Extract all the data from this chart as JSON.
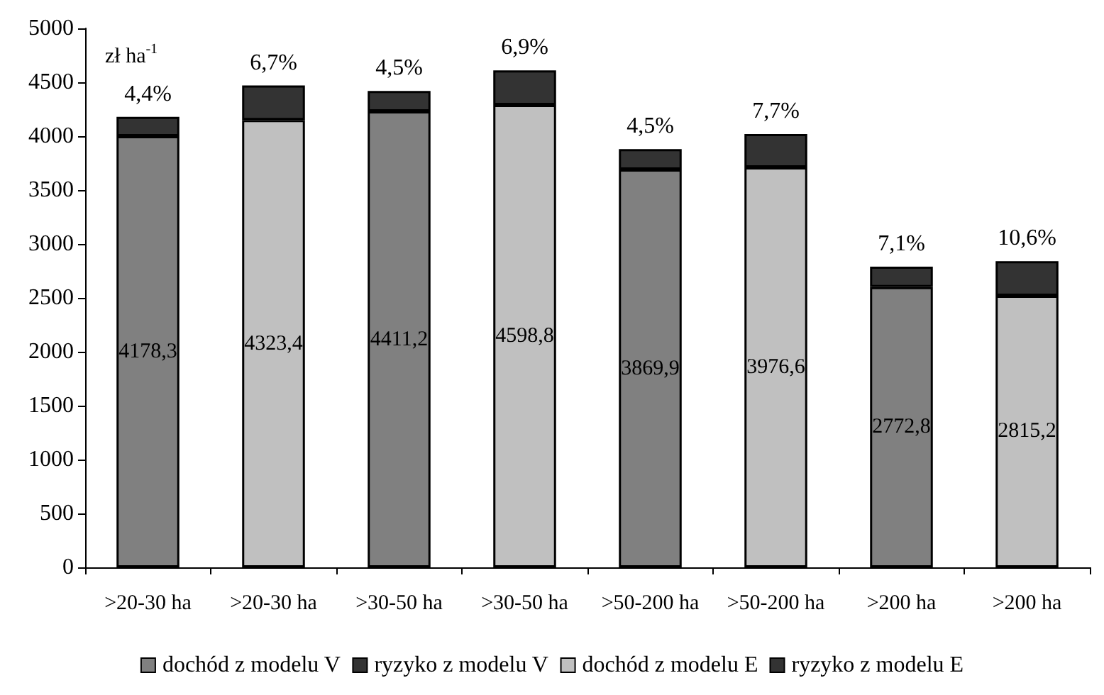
{
  "chart_data": {
    "type": "bar",
    "stacked": true,
    "ylabel": "zł ha$^{-1}$",
    "categories": [
      ">20-30 ha",
      ">20-30 ha",
      ">30-50 ha",
      ">30-50 ha",
      ">50-200 ha",
      ">50-200 ha",
      ">200 ha",
      ">200 ha"
    ],
    "series": [
      {
        "name": "dochód z modelu V",
        "color": "#808080",
        "values": [
          4000,
          null,
          4230,
          null,
          3690,
          null,
          2600,
          null
        ]
      },
      {
        "name": "ryzyko z modelu V",
        "color": "#333333",
        "values": [
          180,
          null,
          190,
          null,
          190,
          null,
          190,
          null
        ]
      },
      {
        "name": "dochód z modelu E",
        "color": "#c0c0c0",
        "values": [
          null,
          4150,
          null,
          4290,
          null,
          3710,
          null,
          2520
        ]
      },
      {
        "name": "ryzyko z modelu E",
        "color": "#333333",
        "values": [
          null,
          320,
          null,
          320,
          null,
          310,
          null,
          320
        ]
      }
    ],
    "annotations": [
      "4178,3",
      "4323,4",
      "4411,2",
      "4598,8",
      "3869,9",
      "3976,6",
      "2772,8",
      "2815,2",
      "4,4%",
      "6,7%",
      "4,5%",
      "6,9%",
      "4,5%",
      "7,7%",
      "7,1%",
      "10,6%"
    ],
    "ylim": [
      0,
      5000
    ],
    "yticks": [
      0,
      500,
      1000,
      1500,
      2000,
      2500,
      3000,
      3500,
      4000,
      4500,
      5000
    ],
    "grid": false,
    "legend": "bottom"
  }
}
